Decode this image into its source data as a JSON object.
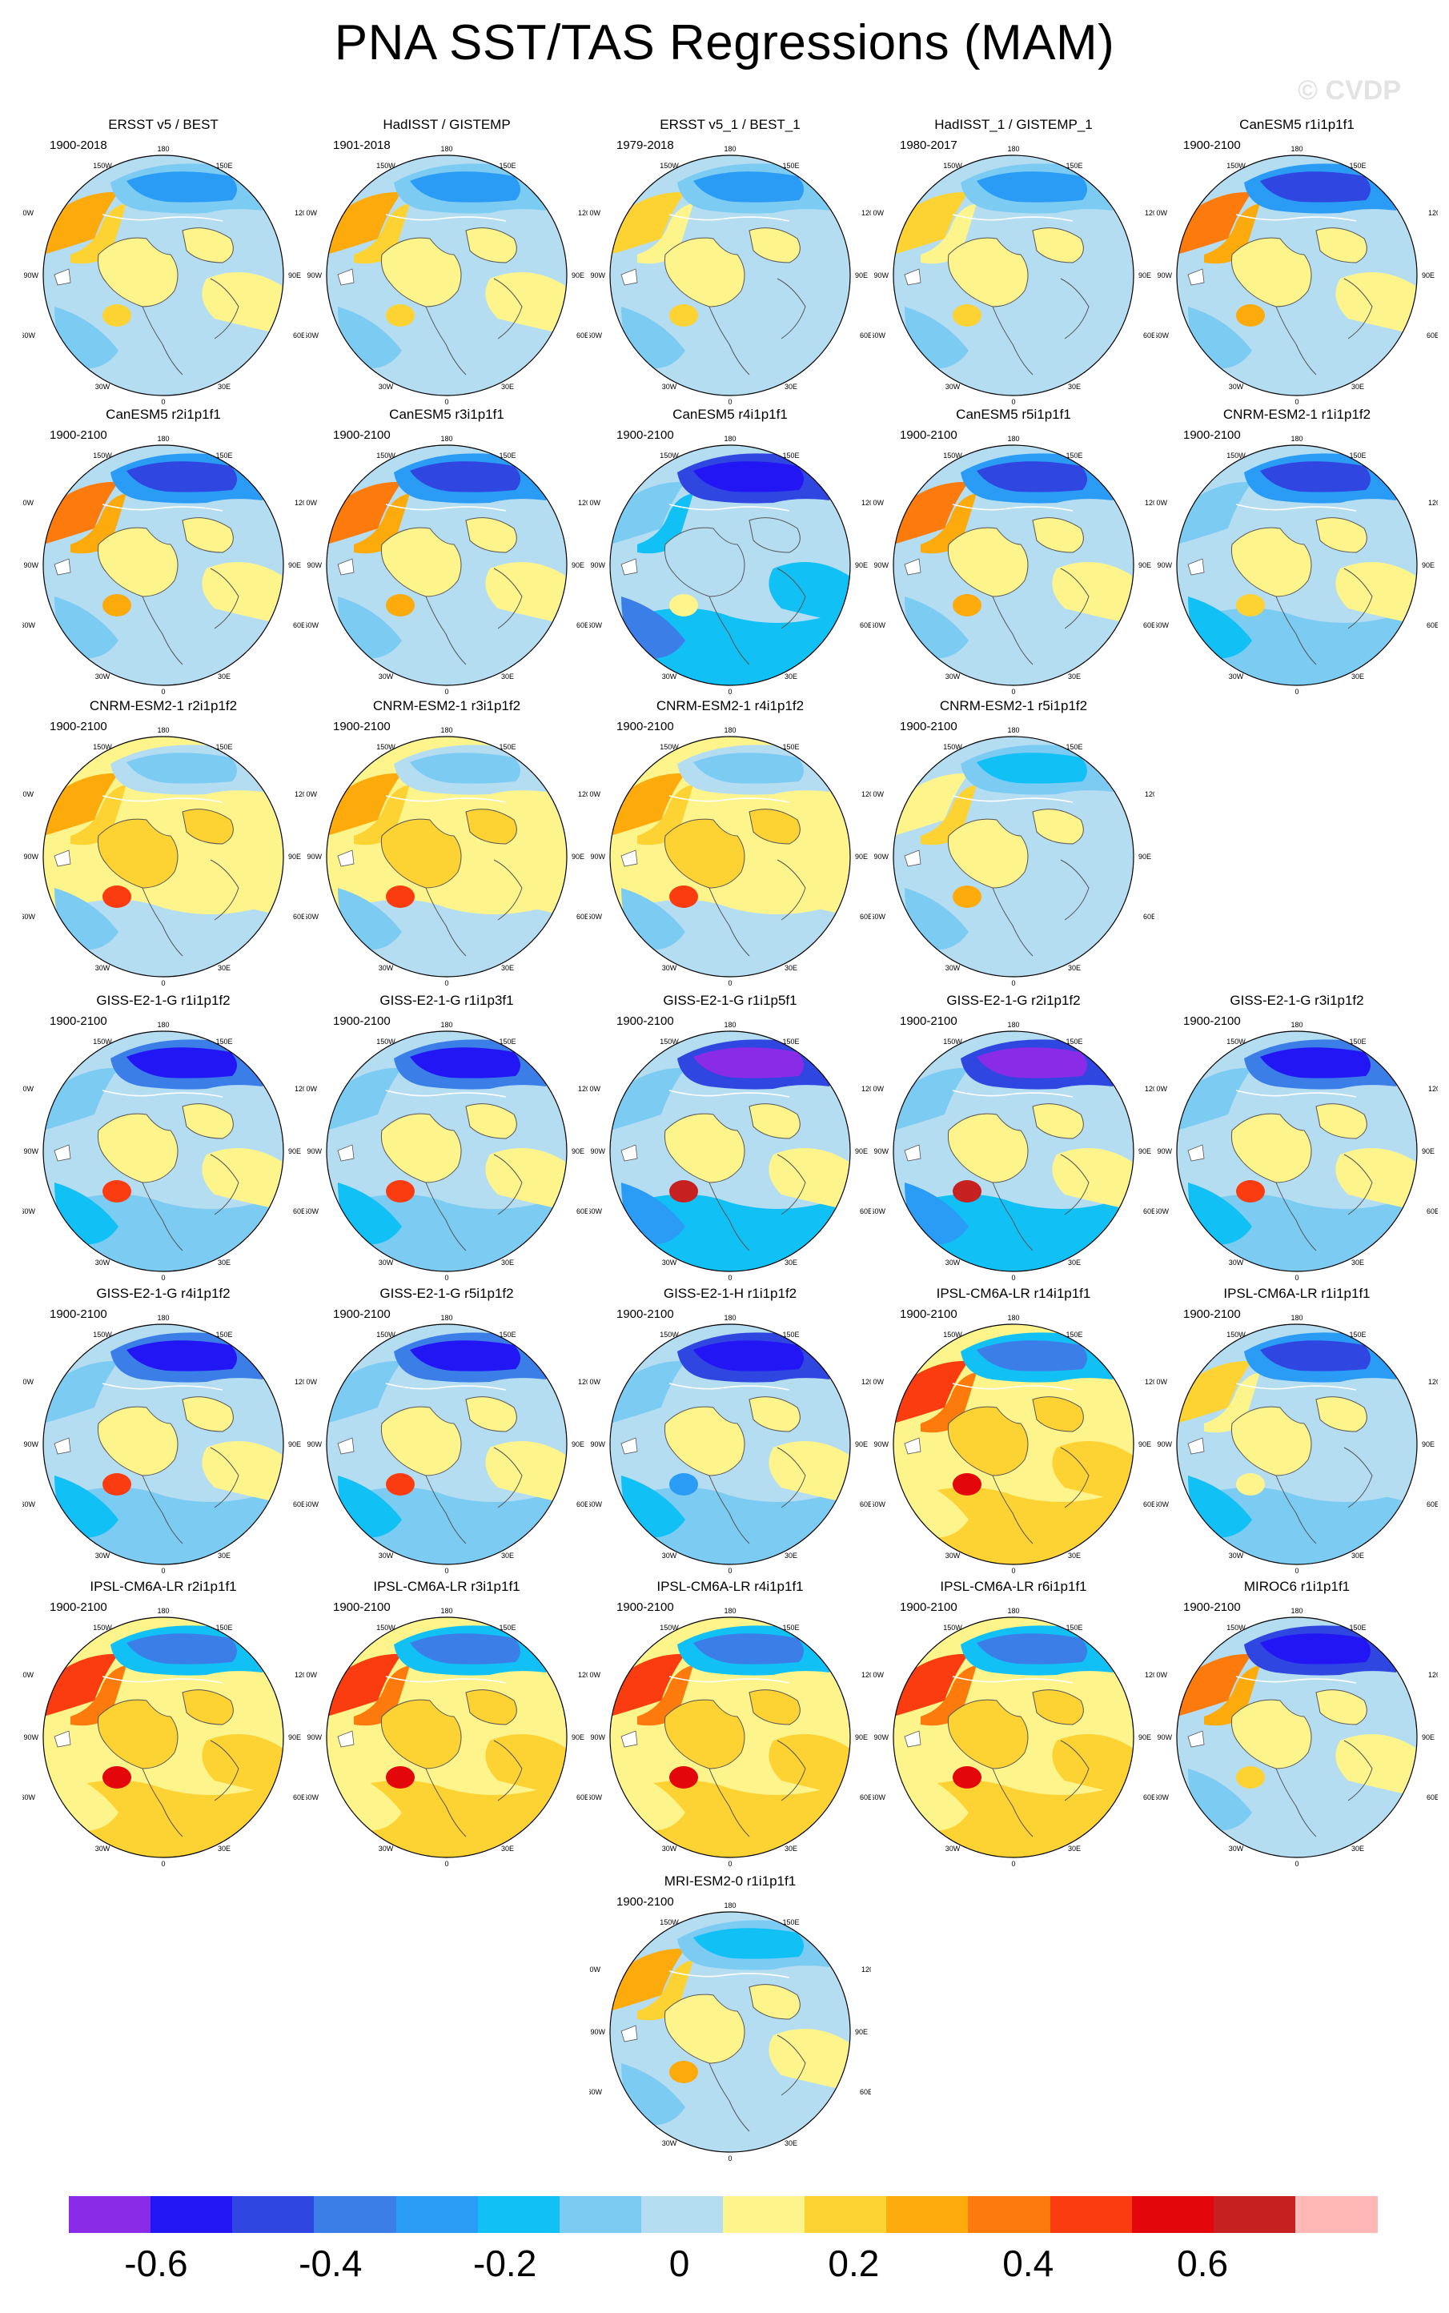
{
  "title": "PNA SST/TAS Regressions (MAM)",
  "watermark": "© CVDP",
  "map_labels": {
    "lon_180": "180",
    "lon_150w": "150W",
    "lon_150e": "150E",
    "lon_120w": "120W",
    "lon_120e": "120E",
    "lon_90w": "90W",
    "lon_90e": "90E",
    "lon_60w": "60W",
    "lon_60e": "60E",
    "lon_30w": "30W",
    "lon_30e": "30E",
    "lon_0": "0"
  },
  "panels": [
    {
      "name": "ERSST v5 / BEST",
      "period": "1900-2018",
      "pattern": "obs_long"
    },
    {
      "name": "HadISST / GISTEMP",
      "period": "1901-2018",
      "pattern": "obs_long"
    },
    {
      "name": "ERSST v5_1 / BEST_1",
      "period": "1979-2018",
      "pattern": "obs_recent"
    },
    {
      "name": "HadISST_1 / GISTEMP_1",
      "period": "1980-2017",
      "pattern": "obs_recent"
    },
    {
      "name": "CanESM5 r1i1p1f1",
      "period": "1900-2100",
      "pattern": "canesm"
    },
    {
      "name": "CanESM5 r2i1p1f1",
      "period": "1900-2100",
      "pattern": "canesm"
    },
    {
      "name": "CanESM5 r3i1p1f1",
      "period": "1900-2100",
      "pattern": "canesm"
    },
    {
      "name": "CanESM5 r4i1p1f1",
      "period": "1900-2100",
      "pattern": "canesm_cold"
    },
    {
      "name": "CanESM5 r5i1p1f1",
      "period": "1900-2100",
      "pattern": "canesm"
    },
    {
      "name": "CNRM-ESM2-1 r1i1p1f2",
      "period": "1900-2100",
      "pattern": "cnrm_cold"
    },
    {
      "name": "CNRM-ESM2-1 r2i1p1f2",
      "period": "1900-2100",
      "pattern": "cnrm_warm"
    },
    {
      "name": "CNRM-ESM2-1 r3i1p1f2",
      "period": "1900-2100",
      "pattern": "cnrm_warm"
    },
    {
      "name": "CNRM-ESM2-1 r4i1p1f2",
      "period": "1900-2100",
      "pattern": "cnrm_warm"
    },
    {
      "name": "CNRM-ESM2-1 r5i1p1f2",
      "period": "1900-2100",
      "pattern": "cnrm_mix"
    },
    {
      "name": "GISS-E2-1-G r1i1p1f2",
      "period": "1900-2100",
      "pattern": "giss"
    },
    {
      "name": "GISS-E2-1-G r1i1p3f1",
      "period": "1900-2100",
      "pattern": "giss"
    },
    {
      "name": "GISS-E2-1-G r1i1p5f1",
      "period": "1900-2100",
      "pattern": "giss_strong"
    },
    {
      "name": "GISS-E2-1-G r2i1p1f2",
      "period": "1900-2100",
      "pattern": "giss_strong"
    },
    {
      "name": "GISS-E2-1-G r3i1p1f2",
      "period": "1900-2100",
      "pattern": "giss"
    },
    {
      "name": "GISS-E2-1-G r4i1p1f2",
      "period": "1900-2100",
      "pattern": "giss"
    },
    {
      "name": "GISS-E2-1-G r5i1p1f2",
      "period": "1900-2100",
      "pattern": "giss"
    },
    {
      "name": "GISS-E2-1-H r1i1p1f2",
      "period": "1900-2100",
      "pattern": "giss_h"
    },
    {
      "name": "IPSL-CM6A-LR r14i1p1f1",
      "period": "1900-2100",
      "pattern": "ipsl"
    },
    {
      "name": "IPSL-CM6A-LR r1i1p1f1",
      "period": "1900-2100",
      "pattern": "ipsl_cold"
    },
    {
      "name": "IPSL-CM6A-LR r2i1p1f1",
      "period": "1900-2100",
      "pattern": "ipsl"
    },
    {
      "name": "IPSL-CM6A-LR r3i1p1f1",
      "period": "1900-2100",
      "pattern": "ipsl"
    },
    {
      "name": "IPSL-CM6A-LR r4i1p1f1",
      "period": "1900-2100",
      "pattern": "ipsl"
    },
    {
      "name": "IPSL-CM6A-LR r6i1p1f1",
      "period": "1900-2100",
      "pattern": "ipsl"
    },
    {
      "name": "MIROC6 r1i1p1f1",
      "period": "1900-2100",
      "pattern": "miroc"
    },
    {
      "name": "MRI-ESM2-0 r1i1p1f1",
      "period": "1900-2100",
      "pattern": "mri"
    }
  ],
  "colorbar": {
    "colors": [
      "#8a2be8",
      "#2216f5",
      "#2f46e0",
      "#3c7ee8",
      "#2a9cf5",
      "#11c0f5",
      "#7ccbf2",
      "#b5ddf2",
      "#fdf48c",
      "#fdd233",
      "#fdaa0c",
      "#fc7b0c",
      "#fb3c11",
      "#e3060a",
      "#c72021",
      "#ffb8b5"
    ],
    "tick_labels": [
      "-0.6",
      "-0.4",
      "-0.2",
      "0",
      "0.2",
      "0.4",
      "0.6"
    ],
    "tick_values": [
      -0.6,
      -0.4,
      -0.2,
      0,
      0.2,
      0.4,
      0.6
    ],
    "level_min": -0.7,
    "level_max": 0.8
  }
}
